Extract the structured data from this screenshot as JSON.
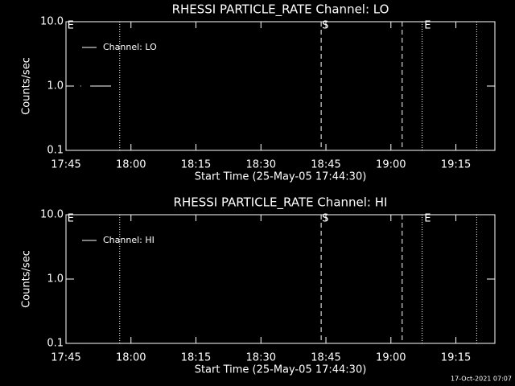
{
  "chart_data": [
    {
      "type": "line",
      "title": "RHESSI PARTICLE_RATE Channel: LO",
      "xlabel": "Start Time (25-May-05 17:44:30)",
      "ylabel": "Counts/sec",
      "xlim": [
        1065,
        1164
      ],
      "xticks": [
        {
          "value": 1065,
          "label": "17:45"
        },
        {
          "value": 1080,
          "label": "18:00"
        },
        {
          "value": 1095,
          "label": "18:15"
        },
        {
          "value": 1110,
          "label": "18:30"
        },
        {
          "value": 1125,
          "label": "18:45"
        },
        {
          "value": 1140,
          "label": "19:00"
        },
        {
          "value": 1155,
          "label": "19:15"
        }
      ],
      "ylim": [
        0.1,
        10
      ],
      "ylog": true,
      "yticks": [
        0.1,
        {
          "value": 1,
          "label": "1.0"
        },
        {
          "value": 10,
          "label": "10.0"
        }
      ],
      "legend": "upper left",
      "series": [
        {
          "name": "Channel: LO",
          "color": "#ffffff",
          "x": [
            1068.3,
            1069,
            1070.6,
            1075.4
          ],
          "values": [
            1,
            null,
            1,
            1
          ]
        }
      ],
      "vlines": [
        {
          "x": 1077.4,
          "style": "dotted"
        },
        {
          "x": 1123.9,
          "style": "dashed"
        },
        {
          "x": 1142.6,
          "style": "dashed"
        },
        {
          "x": 1147.2,
          "style": "dotted"
        },
        {
          "x": 1159.8,
          "style": "dotted"
        }
      ],
      "annotations": [
        {
          "text": "E",
          "x": 1065.5
        },
        {
          "text": "S",
          "x": 1124.3
        },
        {
          "text": "E",
          "x": 1147.9
        }
      ]
    },
    {
      "type": "line",
      "title": "RHESSI PARTICLE_RATE Channel: HI",
      "xlabel": "Start Time (25-May-05 17:44:30)",
      "ylabel": "Counts/sec",
      "xlim": [
        1065,
        1164
      ],
      "xticks": [
        {
          "value": 1065,
          "label": "17:45"
        },
        {
          "value": 1080,
          "label": "18:00"
        },
        {
          "value": 1095,
          "label": "18:15"
        },
        {
          "value": 1110,
          "label": "18:30"
        },
        {
          "value": 1125,
          "label": "18:45"
        },
        {
          "value": 1140,
          "label": "19:00"
        },
        {
          "value": 1155,
          "label": "19:15"
        }
      ],
      "ylim": [
        0.1,
        10
      ],
      "ylog": true,
      "yticks": [
        0.1,
        {
          "value": 1,
          "label": "1.0"
        },
        {
          "value": 10,
          "label": "10.0"
        }
      ],
      "legend": "upper left",
      "series": [
        {
          "name": "Channel: HI",
          "color": "#ffffff",
          "x": [],
          "values": []
        }
      ],
      "vlines": [
        {
          "x": 1077.4,
          "style": "dotted"
        },
        {
          "x": 1123.9,
          "style": "dashed"
        },
        {
          "x": 1142.6,
          "style": "dashed"
        },
        {
          "x": 1147.2,
          "style": "dotted"
        },
        {
          "x": 1159.8,
          "style": "dotted"
        }
      ],
      "annotations": [
        {
          "text": "E",
          "x": 1065.5
        },
        {
          "text": "S",
          "x": 1124.3
        },
        {
          "text": "E",
          "x": 1147.9
        }
      ]
    }
  ],
  "footer": "17-Oct-2021 07:07"
}
